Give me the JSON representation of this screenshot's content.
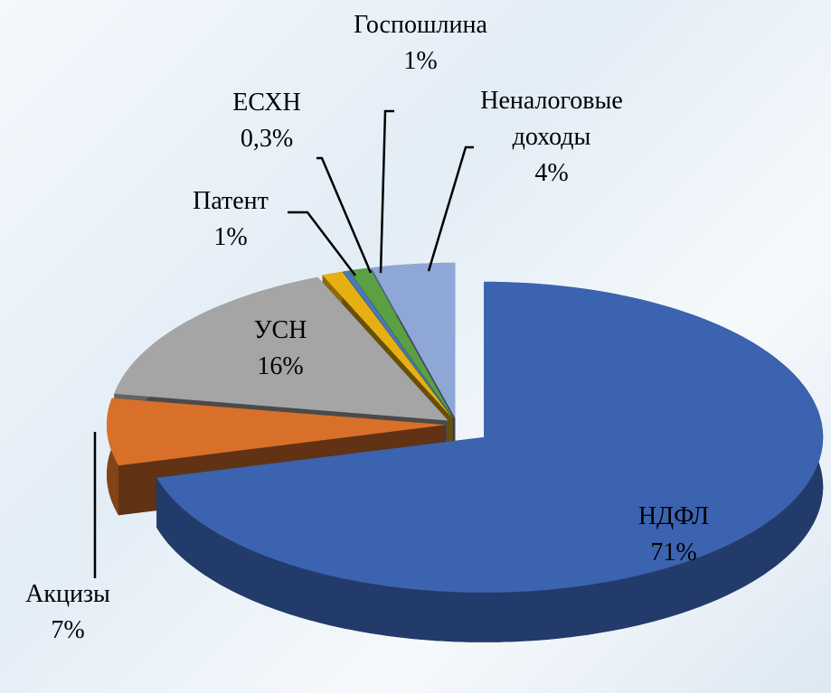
{
  "chart_data": {
    "type": "pie",
    "categories": [
      "НДФЛ",
      "Акцизы",
      "УСН",
      "Патент",
      "ЕСХН",
      "Госпошлина",
      "Неналоговые доходы"
    ],
    "values": [
      71,
      7,
      16,
      1,
      0.3,
      1,
      4
    ],
    "value_labels": [
      "71%",
      "7%",
      "16%",
      "1%",
      "0,3%",
      "1%",
      "4%"
    ],
    "colors": [
      "#3b63b0",
      "#d8702a",
      "#a5a5a5",
      "#e6b012",
      "#4a78c0",
      "#5ba043",
      "#8ea7d6"
    ]
  }
}
